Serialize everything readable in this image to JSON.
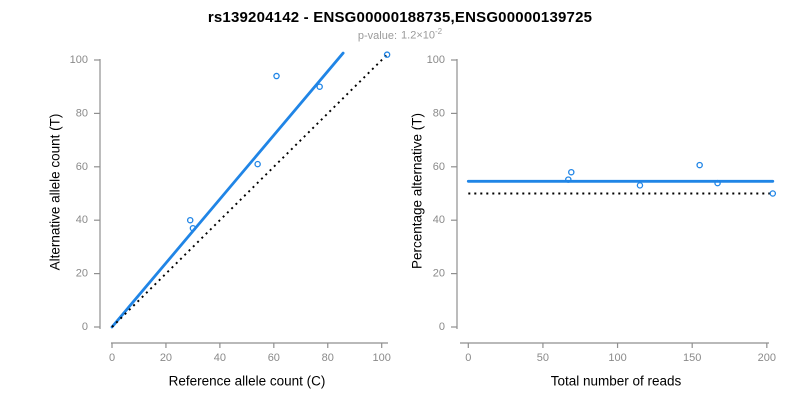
{
  "header": {
    "title": "rs139204142 - ENSG00000188735,ENSG00000139725",
    "pvalue_label": "p-value:",
    "pvalue_mantissa": "1.2×10",
    "pvalue_exponent": "-2"
  },
  "colors": {
    "accent": "#2085e6",
    "identity": "#000000",
    "axis": "#8f8f8f",
    "tick_text": "#8a8a8a",
    "axis_title": "#000000",
    "subtitle": "#9a9a9a",
    "background": "#ffffff"
  },
  "chart_data": [
    {
      "type": "scatter",
      "name": "allele-counts-plot",
      "xlabel": "Reference allele count (C)",
      "ylabel": "Alternative allele count (T)",
      "xlim": [
        0,
        103
      ],
      "ylim": [
        0,
        103
      ],
      "x_ticks": [
        0,
        20,
        40,
        60,
        80,
        100
      ],
      "y_ticks": [
        0,
        20,
        40,
        60,
        80,
        100
      ],
      "grid": false,
      "legend": "none",
      "points": {
        "x": [
          29,
          30,
          54,
          61,
          77,
          102
        ],
        "y": [
          40,
          37,
          61,
          94,
          90,
          102
        ]
      },
      "lines": [
        {
          "name": "fit-line",
          "role": "regression",
          "x1": 0,
          "y1": 0,
          "x2": 85.7,
          "y2": 102.6,
          "style": "solid",
          "color": "accent",
          "width": 2.8
        },
        {
          "name": "identity-line",
          "role": "y-equals-x",
          "x1": 0,
          "y1": 0,
          "x2": 102,
          "y2": 102,
          "style": "dotted",
          "color": "identity",
          "width": 1.9
        }
      ]
    },
    {
      "type": "scatter",
      "name": "percentage-plot",
      "xlabel": "Total number of reads",
      "ylabel": "Percentage alternative (T)",
      "xlim": [
        0,
        204
      ],
      "ylim": [
        0,
        103
      ],
      "x_ticks": [
        0,
        50,
        100,
        150,
        200
      ],
      "y_ticks": [
        0,
        20,
        40,
        60,
        80,
        100
      ],
      "grid": false,
      "legend": "none",
      "points": {
        "x": [
          69,
          67,
          115,
          155,
          167,
          204
        ],
        "y": [
          57.97,
          55.22,
          53.04,
          60.65,
          53.89,
          50.0
        ]
      },
      "lines": [
        {
          "name": "fit-line",
          "role": "mean-percentage",
          "x1": 0,
          "y1": 54.57,
          "x2": 204,
          "y2": 54.57,
          "style": "solid",
          "color": "accent",
          "width": 2.8
        },
        {
          "name": "identity-line",
          "role": "fifty-percent",
          "x1": 0,
          "y1": 50,
          "x2": 204,
          "y2": 50,
          "style": "dotted",
          "color": "identity",
          "width": 1.9
        }
      ]
    }
  ]
}
